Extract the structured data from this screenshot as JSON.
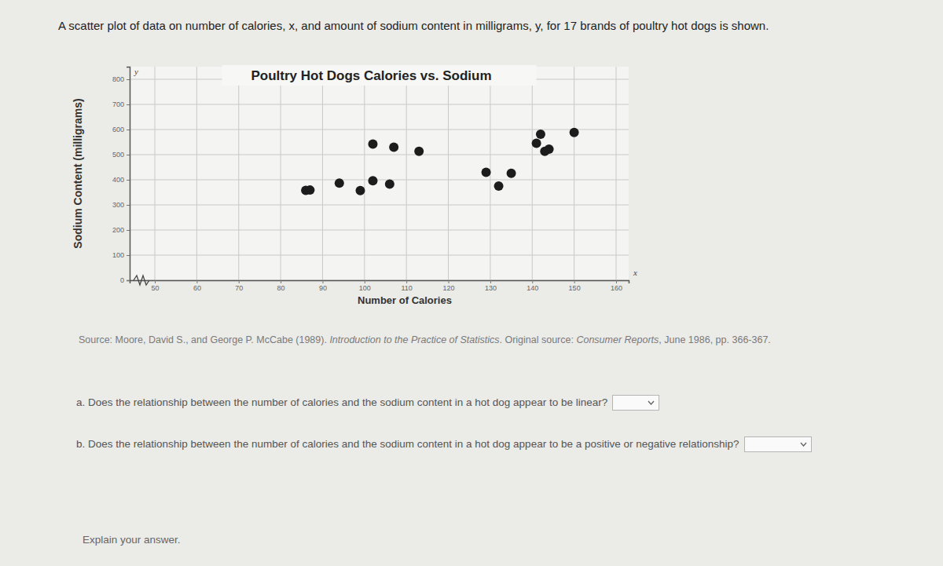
{
  "chart_data": {
    "type": "scatter",
    "title": "Poultry Hot Dogs Calories vs. Sodium",
    "x_label": "Number of Calories",
    "y_label": "Sodium Content (milligrams)",
    "x": [
      86,
      87,
      94,
      99,
      102,
      106,
      102,
      107,
      113,
      129,
      135,
      132,
      142,
      141,
      143,
      144,
      150
    ],
    "values": [
      358,
      359,
      387,
      357,
      396,
      383,
      542,
      530,
      513,
      430,
      426,
      375,
      581,
      545,
      513,
      522,
      588
    ],
    "color": "#1c1c1c",
    "marker": "circle",
    "xlim": [
      44,
      163
    ],
    "ylim": [
      0,
      850
    ],
    "xticks": [
      50,
      60,
      70,
      80,
      90,
      100,
      110,
      120,
      130,
      140,
      150,
      160
    ],
    "yticks": [
      0,
      100,
      200,
      300,
      400,
      500,
      600,
      700,
      800
    ],
    "grid": true,
    "annotations": [
      "y",
      "x"
    ]
  },
  "page": {
    "intro": "A scatter plot of data on number of calories, x, and amount of sodium content in milligrams, y, for 17 brands of poultry hot dogs is shown.",
    "source": [
      "Source: Moore, David S., and George P. McCabe (1989). ",
      "Introduction to the Practice of Statistics",
      ". Original source: ",
      "Consumer Reports",
      ", June 1986, pp. 366-367."
    ],
    "questions": [
      "a. Does the relationship between the number of calories and the sodium content in a hot dog appear to be linear?",
      "b. Does the relationship between the number of calories and the sodium content in a hot dog appear to be a positive or negative relationship?"
    ],
    "prompt": "Explain your answer."
  }
}
